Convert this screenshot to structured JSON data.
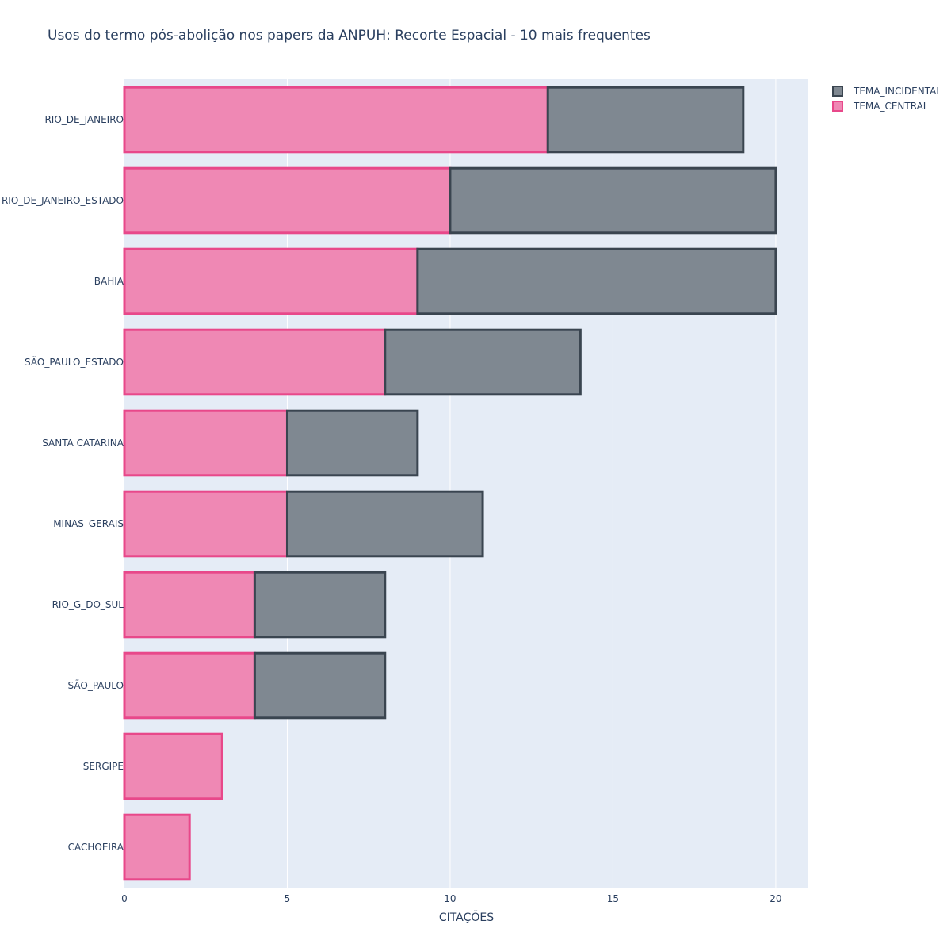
{
  "chart_data": {
    "type": "bar",
    "orientation": "horizontal",
    "barmode": "stack",
    "title": "Usos do termo pós-abolição nos papers da ANPUH: Recorte Espacial - 10 mais frequentes",
    "xlabel": "CITAÇÕES",
    "ylabel": "",
    "xlim": [
      0,
      21
    ],
    "xticks": [
      0,
      5,
      10,
      15,
      20
    ],
    "grid": true,
    "legend_position": "top-right",
    "categories": [
      "RIO_DE_JANEIRO",
      "RIO_DE_JANEIRO_ESTADO",
      "BAHIA",
      "SÃO_PAULO_ESTADO",
      "SANTA CATARINA",
      "MINAS_GERAIS",
      "RIO_G_DO_SUL",
      "SÃO_PAULO",
      "SERGIPE",
      "CACHOEIRA"
    ],
    "series": [
      {
        "name": "TEMA_CENTRAL",
        "values": [
          13,
          10,
          9,
          8,
          5,
          5,
          4,
          4,
          3,
          2
        ],
        "fill": "#ef88b4",
        "stroke": "#e8488a"
      },
      {
        "name": "TEMA_INCIDENTAL",
        "values": [
          6,
          10,
          11,
          6,
          4,
          6,
          4,
          4,
          0,
          0
        ],
        "fill": "#7f8891",
        "stroke": "#3a4550"
      }
    ],
    "legend_order": [
      "TEMA_INCIDENTAL",
      "TEMA_CENTRAL"
    ],
    "colors": {
      "plot_bg": "#e5ecf6",
      "grid": "#ffffff",
      "text": "#2a3f5f"
    }
  }
}
